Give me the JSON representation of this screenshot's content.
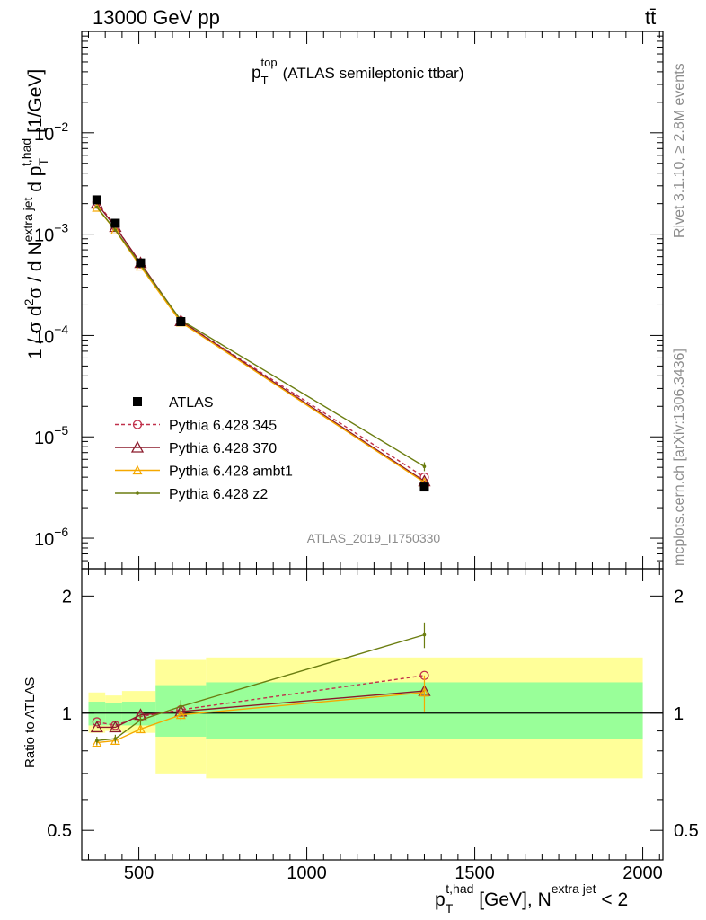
{
  "header": {
    "left": "13000 GeV pp",
    "right": "tt̄"
  },
  "side_labels": {
    "rivet": "Rivet 3.1.10, ≥ 2.8M events",
    "mcplots": "mcplots.cern.ch [arXiv:1306.3436]"
  },
  "watermark": "ATLAS_2019_I1750330",
  "colors": {
    "data": "#000000",
    "p345": "#c0304a",
    "p370": "#8b1a2b",
    "ambt1": "#f5a800",
    "z2": "#6b7d10",
    "band_inner": "#99ff99",
    "band_outer": "#ffff99"
  },
  "chart_data": [
    {
      "type": "line",
      "title": "p_T^top (ATLAS semileptonic ttbar)",
      "title_parts": {
        "p": "p",
        "sub": "T",
        "sup": "top",
        "rest": "(ATLAS semileptonic ttbar)"
      },
      "ylabel": "1 / σ d²σ / d N^{extra jet} d p_T^{t,had} [1/GeV]",
      "ylabel_parts": {
        "a": "1 / σ d",
        "a_sup": "2",
        "b": "σ / d N",
        "b_sup": "extra jet",
        "c": " d p",
        "c_sup": "t,had",
        "c_sub": "T",
        "d": " [1/GeV]"
      },
      "yscale": "log",
      "ylim": [
        5e-07,
        0.1
      ],
      "xlim": [
        330,
        2060
      ],
      "y_ticks": [
        {
          "value": 1e-06,
          "base": "10",
          "exp": "−6"
        },
        {
          "value": 1e-05,
          "base": "10",
          "exp": "−5"
        },
        {
          "value": 0.0001,
          "base": "10",
          "exp": "−4"
        },
        {
          "value": 0.001,
          "base": "10",
          "exp": "−3"
        },
        {
          "value": 0.01,
          "base": "10",
          "exp": "−2"
        }
      ],
      "legend_position": "middle-left",
      "series": [
        {
          "name": "ATLAS",
          "key": "data",
          "marker": "square",
          "x": [
            375,
            430,
            505,
            625,
            1350
          ],
          "y": [
            0.00218,
            0.00128,
            0.00052,
            0.000137,
            3.2e-06
          ]
        },
        {
          "name": "Pythia 6.428 345",
          "key": "p345",
          "marker": "circle-open",
          "dash": true,
          "x": [
            375,
            430,
            505,
            625,
            1350
          ],
          "y": [
            0.00207,
            0.0012,
            0.00051,
            0.000139,
            4e-06
          ]
        },
        {
          "name": "Pythia 6.428 370",
          "key": "p370",
          "marker": "triangle-open",
          "x": [
            375,
            430,
            505,
            625,
            1350
          ],
          "y": [
            0.00201,
            0.00118,
            0.00052,
            0.000139,
            3.65e-06
          ]
        },
        {
          "name": "Pythia 6.428 ambt1",
          "key": "ambt1",
          "marker": "triangle-open-small",
          "x": [
            375,
            430,
            505,
            625,
            1350
          ],
          "y": [
            0.00183,
            0.00109,
            0.00048,
            0.000135,
            3.55e-06
          ]
        },
        {
          "name": "Pythia 6.428 z2",
          "key": "z2",
          "marker": "dot",
          "x": [
            375,
            430,
            505,
            625,
            1350
          ],
          "y": [
            0.00185,
            0.0011,
            0.0005,
            0.000142,
            5.1e-06
          ]
        }
      ]
    },
    {
      "type": "line",
      "ylabel": "Ratio to ATLAS",
      "yscale": "log",
      "ylim": [
        0.42,
        2.35
      ],
      "xlim": [
        330,
        2060
      ],
      "y_ticks": [
        0.5,
        1,
        2
      ],
      "x_ticks": [
        500,
        1000,
        1500,
        2000
      ],
      "xlabel_parts": {
        "p": "p",
        "sub": "T",
        "sup": "t,had",
        "mid": " [GeV], N",
        "sup2": "extra jet",
        "end": " < 2"
      },
      "bands": {
        "edges": [
          350,
          400,
          450,
          550,
          700,
          2000
        ],
        "inner_low": [
          0.93,
          0.93,
          0.93,
          0.87,
          0.86
        ],
        "inner_high": [
          1.07,
          1.06,
          1.07,
          1.18,
          1.2
        ],
        "outer_low": [
          0.89,
          0.9,
          0.89,
          0.7,
          0.68
        ],
        "outer_high": [
          1.13,
          1.11,
          1.14,
          1.37,
          1.39
        ]
      },
      "series": [
        {
          "name": "Pythia 6.428 345",
          "key": "p345",
          "marker": "circle-open",
          "dash": true,
          "x": [
            375,
            430,
            505,
            625,
            1350
          ],
          "y": [
            0.95,
            0.93,
            0.98,
            1.02,
            1.25
          ]
        },
        {
          "name": "Pythia 6.428 370",
          "key": "p370",
          "marker": "triangle-open",
          "x": [
            375,
            430,
            505,
            625,
            1350
          ],
          "y": [
            0.92,
            0.92,
            0.99,
            1.01,
            1.14
          ]
        },
        {
          "name": "Pythia 6.428 ambt1",
          "key": "ambt1",
          "marker": "triangle-open-small",
          "x": [
            375,
            430,
            505,
            625,
            1350
          ],
          "y": [
            0.84,
            0.85,
            0.91,
            0.99,
            1.13
          ],
          "err": [
            0.02,
            0.02,
            0.02,
            0.03,
            0.12
          ]
        },
        {
          "name": "Pythia 6.428 z2",
          "key": "z2",
          "marker": "dot",
          "x": [
            375,
            430,
            505,
            625,
            1350
          ],
          "y": [
            0.85,
            0.86,
            0.96,
            1.04,
            1.59
          ],
          "err": [
            0.02,
            0.02,
            0.03,
            0.04,
            0.12
          ]
        }
      ]
    }
  ]
}
